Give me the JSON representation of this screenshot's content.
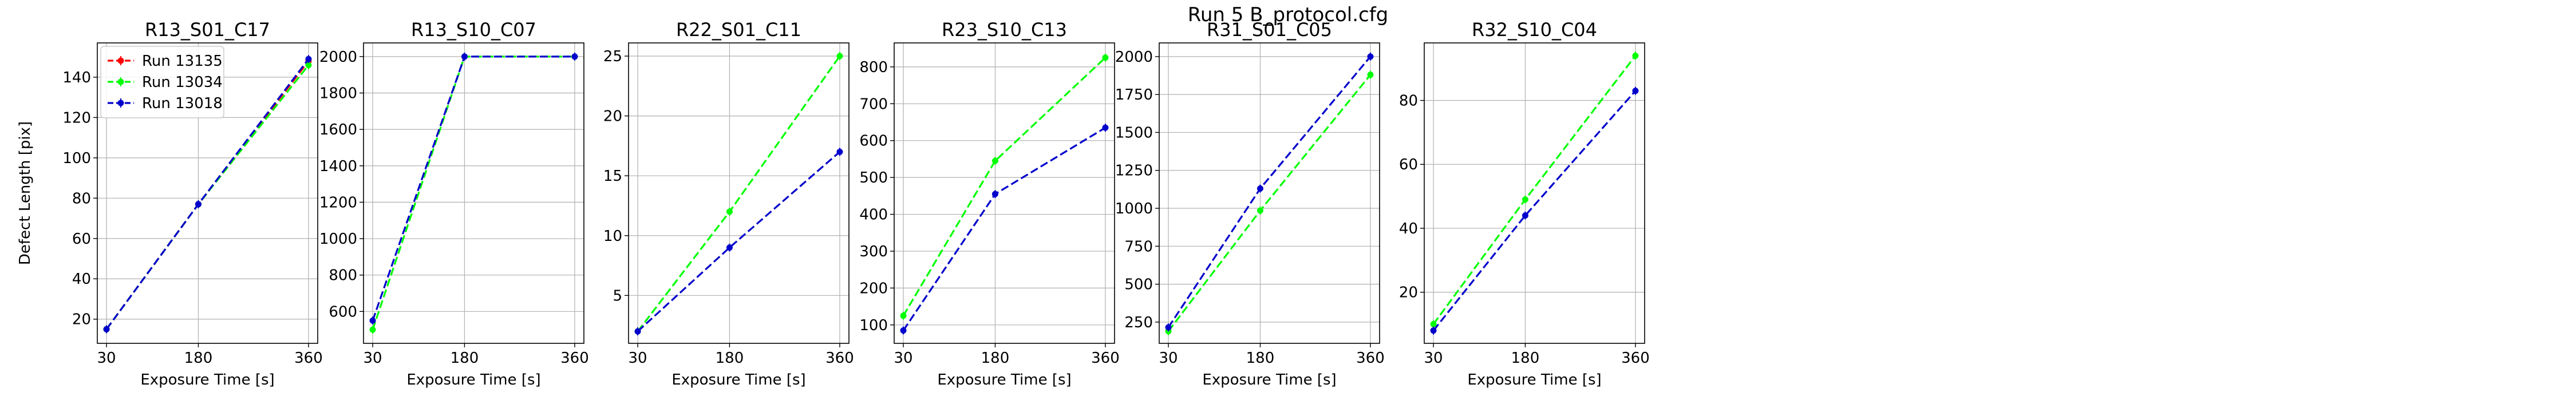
{
  "suptitle": "Run 5 B_protocol.cfg",
  "legend": {
    "position": "upper-left of first panel",
    "entries": [
      {
        "label": "Run 13135",
        "color": "#ff0000"
      },
      {
        "label": "Run 13034",
        "color": "#00ff00"
      },
      {
        "label": "Run 13018",
        "color": "#0000cc"
      }
    ]
  },
  "chart_data": [
    {
      "type": "line",
      "title": "R13_S01_C17",
      "xlabel": "Exposure Time [s]",
      "ylabel": "Defect Length [pix]",
      "x": [
        30,
        180,
        360
      ],
      "xticks": [
        30,
        180,
        360
      ],
      "yticks": [
        20,
        40,
        60,
        80,
        100,
        120,
        140
      ],
      "ylim": [
        8,
        157
      ],
      "grid": true,
      "series": [
        {
          "name": "Run 13135",
          "color": "#ff0000",
          "values": [
            15,
            77,
            148
          ]
        },
        {
          "name": "Run 13034",
          "color": "#00ff00",
          "values": [
            15,
            77,
            146
          ]
        },
        {
          "name": "Run 13018",
          "color": "#0000cc",
          "values": [
            15,
            77,
            149
          ]
        }
      ]
    },
    {
      "type": "line",
      "title": "R13_S10_C07",
      "xlabel": "Exposure Time [s]",
      "ylabel": "",
      "x": [
        30,
        180,
        360
      ],
      "xticks": [
        30,
        180,
        360
      ],
      "yticks": [
        600,
        800,
        1000,
        1200,
        1400,
        1600,
        1800,
        2000
      ],
      "ylim": [
        425,
        2075
      ],
      "grid": true,
      "series": [
        {
          "name": "Run 13034",
          "color": "#00ff00",
          "values": [
            500,
            2000,
            2000
          ]
        },
        {
          "name": "Run 13018",
          "color": "#0000cc",
          "values": [
            550,
            2000,
            2000
          ]
        }
      ]
    },
    {
      "type": "line",
      "title": "R22_S01_C11",
      "xlabel": "Exposure Time [s]",
      "ylabel": "",
      "x": [
        30,
        180,
        360
      ],
      "xticks": [
        30,
        180,
        360
      ],
      "yticks": [
        5,
        10,
        15,
        20,
        25
      ],
      "ylim": [
        1.0,
        26.1
      ],
      "grid": true,
      "series": [
        {
          "name": "Run 13034",
          "color": "#00ff00",
          "values": [
            2,
            12,
            25
          ]
        },
        {
          "name": "Run 13018",
          "color": "#0000cc",
          "values": [
            2,
            9,
            17
          ]
        }
      ]
    },
    {
      "type": "line",
      "title": "R23_S10_C13",
      "xlabel": "Exposure Time [s]",
      "ylabel": "",
      "x": [
        30,
        180,
        360
      ],
      "xticks": [
        30,
        180,
        360
      ],
      "yticks": [
        100,
        200,
        300,
        400,
        500,
        600,
        700,
        800
      ],
      "ylim": [
        50,
        865
      ],
      "grid": true,
      "series": [
        {
          "name": "Run 13034",
          "color": "#00ff00",
          "values": [
            125,
            545,
            825
          ]
        },
        {
          "name": "Run 13018",
          "color": "#0000cc",
          "values": [
            85,
            455,
            635
          ]
        }
      ]
    },
    {
      "type": "line",
      "title": "R31_S01_C05",
      "xlabel": "Exposure Time [s]",
      "ylabel": "",
      "x": [
        30,
        180,
        360
      ],
      "xticks": [
        30,
        180,
        360
      ],
      "yticks": [
        250,
        500,
        750,
        1000,
        1250,
        1500,
        1750,
        2000
      ],
      "ylim": [
        110,
        2090
      ],
      "grid": true,
      "series": [
        {
          "name": "Run 13034",
          "color": "#00ff00",
          "values": [
            190,
            985,
            1880
          ]
        },
        {
          "name": "Run 13018",
          "color": "#0000cc",
          "values": [
            215,
            1130,
            2000
          ]
        }
      ]
    },
    {
      "type": "line",
      "title": "R32_S10_C04",
      "xlabel": "Exposure Time [s]",
      "ylabel": "",
      "x": [
        30,
        180,
        360
      ],
      "xticks": [
        30,
        180,
        360
      ],
      "yticks": [
        20,
        40,
        60,
        80
      ],
      "ylim": [
        4,
        98
      ],
      "grid": true,
      "series": [
        {
          "name": "Run 13034",
          "color": "#00ff00",
          "values": [
            10,
            49,
            94
          ]
        },
        {
          "name": "Run 13018",
          "color": "#0000cc",
          "values": [
            8,
            44,
            83
          ]
        }
      ]
    }
  ]
}
